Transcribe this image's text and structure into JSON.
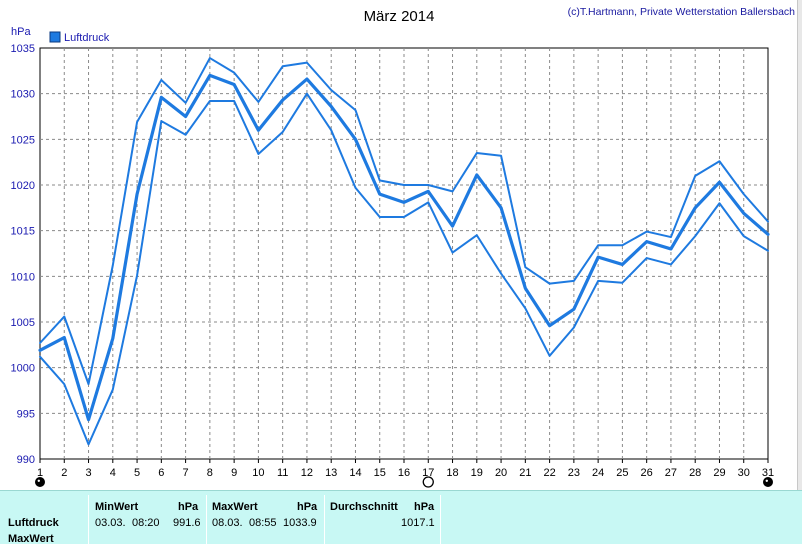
{
  "chart_data": {
    "type": "line",
    "title": "März 2014",
    "credit": "(c)T.Hartmann, Private Wetterstation Ballersbach",
    "ylabel": "hPa",
    "legend": {
      "label": "Luftdruck",
      "position": "top-left",
      "color": "#1e7ae0"
    },
    "ylim": [
      990,
      1035
    ],
    "yticks": [
      990,
      995,
      1000,
      1005,
      1010,
      1015,
      1020,
      1025,
      1030,
      1035
    ],
    "xlim": [
      1,
      31
    ],
    "x": [
      1,
      2,
      3,
      4,
      5,
      6,
      7,
      8,
      9,
      10,
      11,
      12,
      13,
      14,
      15,
      16,
      17,
      18,
      19,
      20,
      21,
      22,
      23,
      24,
      25,
      26,
      27,
      28,
      29,
      30,
      31
    ],
    "grid": true,
    "series": [
      {
        "role": "max",
        "values": [
          1002.7,
          1005.6,
          998.2,
          1011.2,
          1026.9,
          1031.5,
          1029.0,
          1033.9,
          1032.3,
          1029.1,
          1033.0,
          1033.4,
          1030.4,
          1028.2,
          1020.5,
          1020.0,
          1020.0,
          1019.3,
          1023.5,
          1023.2,
          1011.0,
          1009.2,
          1009.5,
          1013.4,
          1013.4,
          1014.9,
          1014.3,
          1021.0,
          1022.6,
          1019.0,
          1016.0
        ]
      },
      {
        "role": "avg",
        "values": [
          1001.9,
          1003.3,
          994.3,
          1003.2,
          1019.0,
          1029.6,
          1027.5,
          1032.0,
          1031.0,
          1026.0,
          1029.3,
          1031.6,
          1028.6,
          1025.0,
          1019.0,
          1018.1,
          1019.3,
          1015.5,
          1021.1,
          1017.5,
          1008.7,
          1004.6,
          1006.4,
          1012.1,
          1011.3,
          1013.8,
          1013.0,
          1017.5,
          1020.3,
          1016.9,
          1014.6
        ]
      },
      {
        "role": "min",
        "values": [
          1001.2,
          998.2,
          991.6,
          997.6,
          1010.1,
          1027.0,
          1025.5,
          1029.2,
          1029.2,
          1023.4,
          1025.8,
          1030.0,
          1026.0,
          1019.7,
          1016.5,
          1016.5,
          1018.1,
          1012.6,
          1014.5,
          1010.3,
          1006.5,
          1001.3,
          1004.4,
          1009.5,
          1009.3,
          1012.0,
          1011.3,
          1014.4,
          1018.0,
          1014.4,
          1012.8
        ]
      }
    ],
    "moon_markers": [
      {
        "day": 1,
        "phase": "new"
      },
      {
        "day": 17,
        "phase": "full"
      },
      {
        "day": 31,
        "phase": "new"
      }
    ]
  },
  "info": {
    "row_label": "Luftdruck",
    "row_label2": "MaxWert",
    "min_header": "MinWert",
    "max_header": "MaxWert",
    "unit": "hPa",
    "min_date": "03.03.",
    "min_time": "08:20",
    "min_value": "991.6",
    "max_date": "08.03.",
    "max_time": "08:55",
    "max_value": "1033.9",
    "avg_header": "Durchschnitt",
    "avg_value": "1017.1"
  }
}
